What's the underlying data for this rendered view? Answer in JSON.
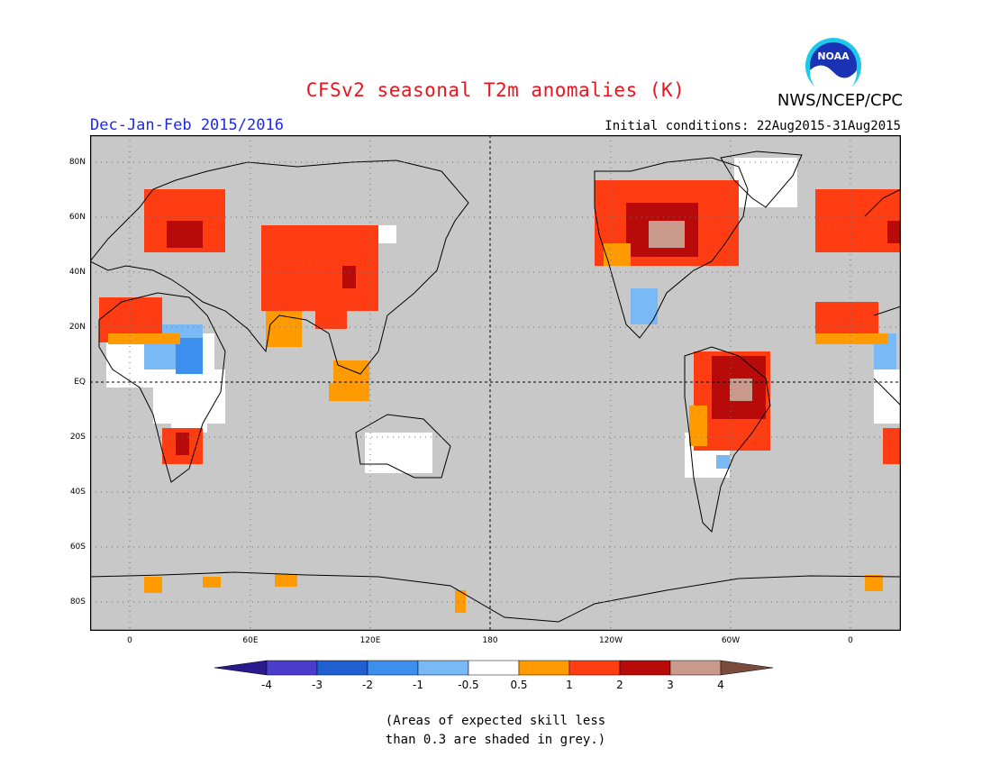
{
  "header": {
    "title": "CFSv2 seasonal T2m anomalies (K)",
    "org": "NWS/NCEP/CPC",
    "period": "Dec-Jan-Feb 2015/2016",
    "initial_conditions": "Initial conditions: 22Aug2015-31Aug2015",
    "logo_text": "NOAA"
  },
  "map": {
    "background_color": "#c8c8c8",
    "lat_labels": [
      "80N",
      "60N",
      "40N",
      "20N",
      "EQ",
      "20S",
      "40S",
      "60S",
      "80S"
    ],
    "lon_labels": [
      "0",
      "60E",
      "120E",
      "180",
      "120W",
      "60W",
      "0"
    ]
  },
  "colorbar": {
    "labels": [
      "-4",
      "-3",
      "-2",
      "-1",
      "-0.5",
      "0.5",
      "1",
      "2",
      "3",
      "4"
    ],
    "colors": [
      "#2a1a8c",
      "#4b3ccc",
      "#1f5fd0",
      "#3d8fee",
      "#79b9f5",
      "#ffffff",
      "#ff9a00",
      "#ff3c12",
      "#b90a0a",
      "#c99a8c",
      "#7a4a3c"
    ]
  },
  "note": {
    "line1": "(Areas of expected skill less",
    "line2": "than 0.3 are shaded in grey.)"
  }
}
